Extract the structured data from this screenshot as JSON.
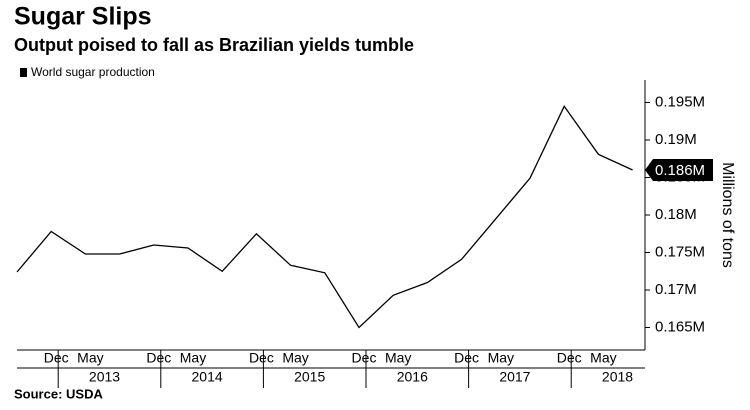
{
  "chart_data": {
    "type": "line",
    "title": "Sugar Slips",
    "subtitle": "Output poised to fall as Brazilian yields tumble",
    "source": "Source: USDA",
    "y_label": "Millions of tons",
    "categories": [
      null,
      "Dec",
      "May",
      null,
      "Dec",
      "May",
      null,
      "Dec",
      "May",
      null,
      "Dec",
      "May",
      null,
      "Dec",
      "May",
      null,
      "Dec",
      "May",
      null
    ],
    "years": [
      "2013",
      "2014",
      "2015",
      "2016",
      "2017",
      "2018"
    ],
    "series": [
      {
        "name": "World sugar production",
        "color": "#000000",
        "values": [
          0.1724,
          0.1778,
          0.1748,
          0.1748,
          0.176,
          0.1756,
          0.1725,
          0.1775,
          0.1733,
          0.1723,
          0.165,
          0.1693,
          0.171,
          0.1741,
          0.1795,
          0.1849,
          0.1945,
          0.1881,
          0.186
        ],
        "value_labels": [
          null,
          null,
          null,
          null,
          null,
          null,
          null,
          null,
          null,
          null,
          null,
          null,
          null,
          null,
          null,
          null,
          null,
          null,
          "0.186M"
        ]
      }
    ],
    "ylim": [
      0.162,
      0.198
    ],
    "yticks": [
      {
        "value": 0.165,
        "label": "0.165M"
      },
      {
        "value": 0.17,
        "label": "0.17M"
      },
      {
        "value": 0.175,
        "label": "0.175M"
      },
      {
        "value": 0.18,
        "label": "0.18M"
      },
      {
        "value": 0.185,
        "label": "0.185M"
      },
      {
        "value": 0.19,
        "label": "0.19M"
      },
      {
        "value": 0.195,
        "label": "0.195M"
      }
    ],
    "grid": false
  }
}
